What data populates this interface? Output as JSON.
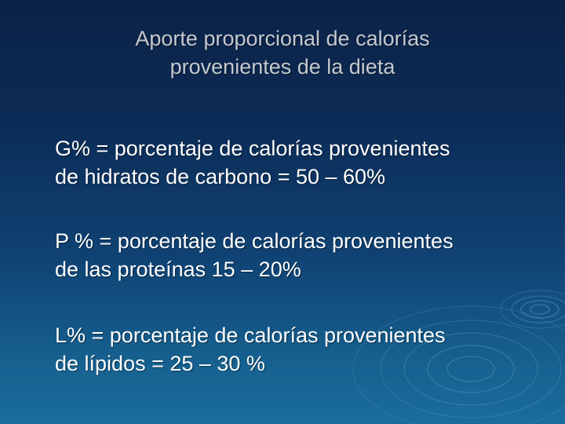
{
  "slide": {
    "title": {
      "line1": "Aporte proporcional de calorías",
      "line2": "provenientes de la dieta"
    },
    "items": [
      {
        "line1": "G% = porcentaje de calorías provenientes",
        "line2": "de hidratos de carbono = 50 – 60%"
      },
      {
        "line1": "P % = porcentaje de calorías provenientes",
        "line2": "de las proteínas 15 – 20%"
      },
      {
        "line1": "L% = porcentaje de calorías provenientes",
        "line2": "de lípidos = 25 – 30 %"
      }
    ]
  }
}
